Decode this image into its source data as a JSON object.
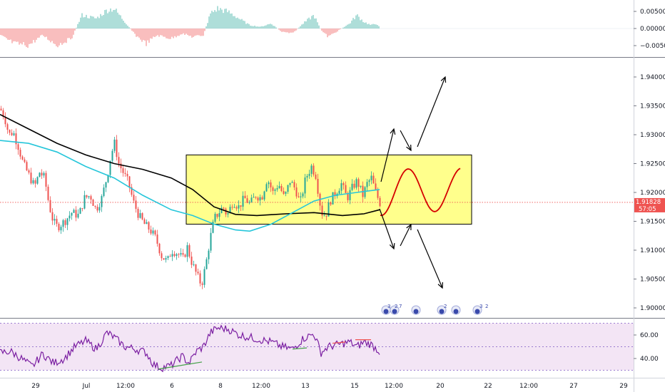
{
  "chart_data": {
    "type": "candlestick",
    "instrument_hint": "",
    "price_axis": {
      "ticks": [
        "1.94000",
        "1.93500",
        "1.93000",
        "1.92500",
        "1.92000",
        "1.91500",
        "1.91000",
        "1.90500",
        "1.90000"
      ],
      "tick_values": [
        1.94,
        1.935,
        1.93,
        1.925,
        1.92,
        1.915,
        1.91,
        1.905,
        1.9
      ],
      "range": [
        1.8985,
        1.9455
      ],
      "current_price": "1.91828",
      "countdown": "57:05"
    },
    "oscillator_axis": {
      "ticks": [
        "0.00500",
        "0.00000",
        "−0.00500"
      ],
      "tick_values": [
        0.005,
        0.0,
        -0.005
      ]
    },
    "rsi_axis": {
      "ticks": [
        "60.00",
        "40.00"
      ],
      "tick_values": [
        60,
        40
      ],
      "levels": [
        70,
        50,
        30
      ]
    },
    "time_axis": {
      "labels": [
        "29",
        "Jul",
        "12:00",
        "6",
        "8",
        "12:00",
        "13",
        "15",
        "12:00",
        "20",
        "22",
        "12:00",
        "27",
        "29"
      ]
    },
    "colors": {
      "up": "#26a69a",
      "down": "#ef5350",
      "ma_slow": "#000000",
      "ma_fast": "#26c6da",
      "range_box": "#ffff66",
      "projection": "#d50000",
      "rsi_line": "#7b1fa2",
      "rsi_band": "#f3e5f5",
      "price_tag": "#ef5350"
    },
    "range_box": {
      "top": 1.9265,
      "bottom": 1.9145
    },
    "annotations": {
      "events_1": "3",
      "events_2": "2",
      "events_3": "7",
      "events_4": "2",
      "events_5": "3",
      "events_6": "2"
    }
  }
}
